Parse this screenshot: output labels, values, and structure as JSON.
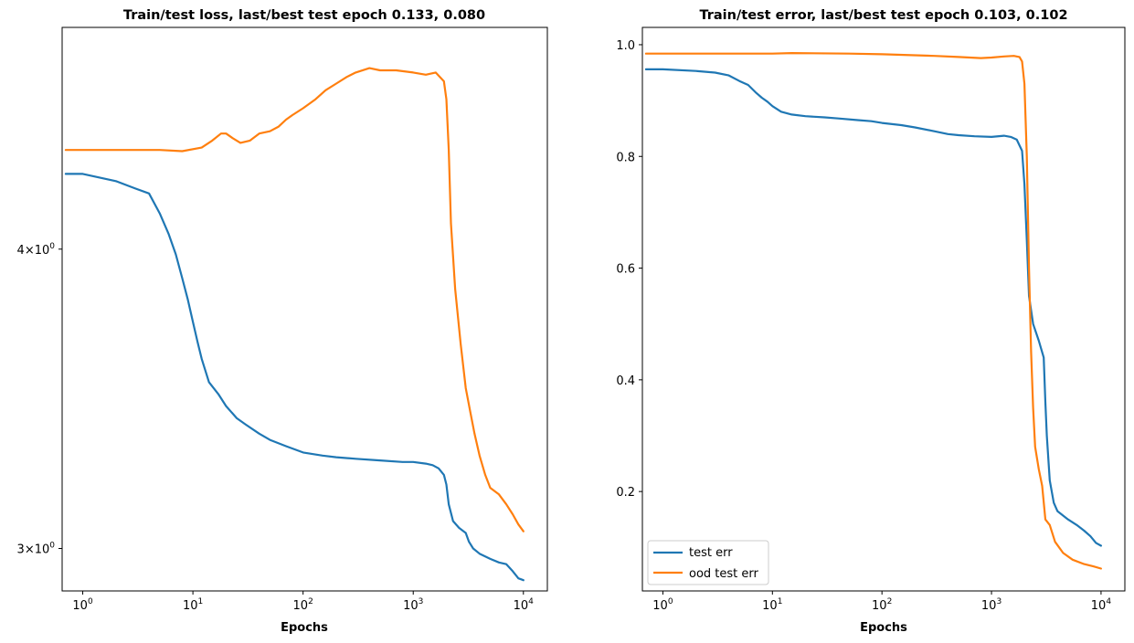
{
  "chart_data": [
    {
      "type": "line",
      "title": "Train/test loss, last/best test epoch 0.133, 0.080",
      "xlabel": "Epochs",
      "ylabel": "",
      "x_scale": "log",
      "y_scale": "log",
      "xlim": [
        0.65,
        16500
      ],
      "ylim": [
        2.88,
        4.95
      ],
      "x_ticks": [
        {
          "value": 1,
          "label": "10",
          "exp": "0"
        },
        {
          "value": 10,
          "label": "10",
          "exp": "1"
        },
        {
          "value": 100,
          "label": "10",
          "exp": "2"
        },
        {
          "value": 1000,
          "label": "10",
          "exp": "3"
        },
        {
          "value": 10000,
          "label": "10",
          "exp": "4"
        }
      ],
      "y_ticks": [
        {
          "value": 3,
          "label": "3×10",
          "exp": "0"
        },
        {
          "value": 4,
          "label": "4×10",
          "exp": "0"
        }
      ],
      "grid": false,
      "series": [
        {
          "color": "#1f77b4",
          "points": [
            [
              0.7,
              4.3
            ],
            [
              1,
              4.3
            ],
            [
              2,
              4.27
            ],
            [
              3,
              4.24
            ],
            [
              4,
              4.22
            ],
            [
              5,
              4.14
            ],
            [
              6,
              4.06
            ],
            [
              7,
              3.98
            ],
            [
              8,
              3.89
            ],
            [
              9,
              3.81
            ],
            [
              10,
              3.73
            ],
            [
              11,
              3.66
            ],
            [
              12,
              3.6
            ],
            [
              14,
              3.52
            ],
            [
              17,
              3.48
            ],
            [
              20,
              3.44
            ],
            [
              25,
              3.4
            ],
            [
              30,
              3.38
            ],
            [
              40,
              3.35
            ],
            [
              50,
              3.33
            ],
            [
              70,
              3.31
            ],
            [
              100,
              3.29
            ],
            [
              150,
              3.28
            ],
            [
              200,
              3.275
            ],
            [
              300,
              3.27
            ],
            [
              500,
              3.265
            ],
            [
              800,
              3.26
            ],
            [
              1000,
              3.26
            ],
            [
              1300,
              3.255
            ],
            [
              1500,
              3.25
            ],
            [
              1700,
              3.24
            ],
            [
              1900,
              3.22
            ],
            [
              2000,
              3.19
            ],
            [
              2100,
              3.13
            ],
            [
              2300,
              3.08
            ],
            [
              2600,
              3.06
            ],
            [
              3000,
              3.045
            ],
            [
              3200,
              3.02
            ],
            [
              3500,
              3.0
            ],
            [
              4000,
              2.985
            ],
            [
              5000,
              2.97
            ],
            [
              6000,
              2.96
            ],
            [
              7000,
              2.955
            ],
            [
              8000,
              2.935
            ],
            [
              9000,
              2.915
            ],
            [
              10000,
              2.91
            ]
          ]
        },
        {
          "color": "#ff7f0e",
          "points": [
            [
              0.7,
              4.4
            ],
            [
              1,
              4.4
            ],
            [
              2,
              4.4
            ],
            [
              5,
              4.4
            ],
            [
              8,
              4.395
            ],
            [
              12,
              4.41
            ],
            [
              15,
              4.44
            ],
            [
              18,
              4.47
            ],
            [
              20,
              4.47
            ],
            [
              23,
              4.45
            ],
            [
              27,
              4.43
            ],
            [
              33,
              4.44
            ],
            [
              40,
              4.47
            ],
            [
              50,
              4.48
            ],
            [
              60,
              4.5
            ],
            [
              70,
              4.53
            ],
            [
              80,
              4.55
            ],
            [
              100,
              4.58
            ],
            [
              130,
              4.62
            ],
            [
              160,
              4.66
            ],
            [
              200,
              4.69
            ],
            [
              250,
              4.72
            ],
            [
              300,
              4.74
            ],
            [
              400,
              4.76
            ],
            [
              500,
              4.75
            ],
            [
              700,
              4.75
            ],
            [
              1000,
              4.74
            ],
            [
              1300,
              4.73
            ],
            [
              1600,
              4.74
            ],
            [
              1900,
              4.7
            ],
            [
              2000,
              4.62
            ],
            [
              2100,
              4.4
            ],
            [
              2200,
              4.1
            ],
            [
              2400,
              3.85
            ],
            [
              2700,
              3.65
            ],
            [
              3000,
              3.5
            ],
            [
              3300,
              3.42
            ],
            [
              3600,
              3.35
            ],
            [
              4000,
              3.28
            ],
            [
              4500,
              3.22
            ],
            [
              5000,
              3.18
            ],
            [
              6000,
              3.16
            ],
            [
              7000,
              3.13
            ],
            [
              8000,
              3.1
            ],
            [
              9000,
              3.07
            ],
            [
              10000,
              3.05
            ]
          ]
        }
      ]
    },
    {
      "type": "line",
      "title": "Train/test error, last/best test epoch 0.103, 0.102",
      "xlabel": "Epochs",
      "ylabel": "",
      "x_scale": "log",
      "y_scale": "linear",
      "xlim": [
        0.65,
        16500
      ],
      "ylim": [
        0.022,
        1.031
      ],
      "x_ticks": [
        {
          "value": 1,
          "label": "10",
          "exp": "0"
        },
        {
          "value": 10,
          "label": "10",
          "exp": "1"
        },
        {
          "value": 100,
          "label": "10",
          "exp": "2"
        },
        {
          "value": 1000,
          "label": "10",
          "exp": "3"
        },
        {
          "value": 10000,
          "label": "10",
          "exp": "4"
        }
      ],
      "y_ticks": [
        {
          "value": 0.2,
          "label": "0.2"
        },
        {
          "value": 0.4,
          "label": "0.4"
        },
        {
          "value": 0.6,
          "label": "0.6"
        },
        {
          "value": 0.8,
          "label": "0.8"
        },
        {
          "value": 1.0,
          "label": "1.0"
        }
      ],
      "grid": false,
      "legend": {
        "location": "lower-left",
        "entries": [
          {
            "label": "test err",
            "color": "#1f77b4"
          },
          {
            "label": "ood test err",
            "color": "#ff7f0e"
          }
        ]
      },
      "series": [
        {
          "name": "test err",
          "color": "#1f77b4",
          "points": [
            [
              0.7,
              0.956
            ],
            [
              1,
              0.956
            ],
            [
              2,
              0.953
            ],
            [
              3,
              0.95
            ],
            [
              4,
              0.945
            ],
            [
              5,
              0.935
            ],
            [
              6,
              0.928
            ],
            [
              7,
              0.915
            ],
            [
              8,
              0.905
            ],
            [
              9,
              0.898
            ],
            [
              10,
              0.89
            ],
            [
              12,
              0.88
            ],
            [
              15,
              0.875
            ],
            [
              20,
              0.872
            ],
            [
              30,
              0.87
            ],
            [
              40,
              0.868
            ],
            [
              60,
              0.865
            ],
            [
              80,
              0.863
            ],
            [
              100,
              0.86
            ],
            [
              150,
              0.856
            ],
            [
              200,
              0.852
            ],
            [
              300,
              0.845
            ],
            [
              400,
              0.84
            ],
            [
              500,
              0.838
            ],
            [
              700,
              0.836
            ],
            [
              1000,
              0.835
            ],
            [
              1300,
              0.837
            ],
            [
              1500,
              0.835
            ],
            [
              1700,
              0.83
            ],
            [
              1900,
              0.81
            ],
            [
              2000,
              0.75
            ],
            [
              2100,
              0.65
            ],
            [
              2200,
              0.55
            ],
            [
              2400,
              0.5
            ],
            [
              2700,
              0.47
            ],
            [
              3000,
              0.44
            ],
            [
              3100,
              0.36
            ],
            [
              3200,
              0.3
            ],
            [
              3400,
              0.22
            ],
            [
              3700,
              0.18
            ],
            [
              4000,
              0.165
            ],
            [
              5000,
              0.15
            ],
            [
              6000,
              0.14
            ],
            [
              7000,
              0.13
            ],
            [
              8000,
              0.12
            ],
            [
              9000,
              0.108
            ],
            [
              10000,
              0.103
            ]
          ]
        },
        {
          "name": "ood test err",
          "color": "#ff7f0e",
          "points": [
            [
              0.7,
              0.984
            ],
            [
              1,
              0.984
            ],
            [
              10,
              0.984
            ],
            [
              15,
              0.985
            ],
            [
              50,
              0.984
            ],
            [
              100,
              0.983
            ],
            [
              300,
              0.98
            ],
            [
              500,
              0.978
            ],
            [
              800,
              0.976
            ],
            [
              1000,
              0.977
            ],
            [
              1300,
              0.979
            ],
            [
              1600,
              0.98
            ],
            [
              1800,
              0.978
            ],
            [
              1900,
              0.97
            ],
            [
              2000,
              0.93
            ],
            [
              2100,
              0.8
            ],
            [
              2200,
              0.6
            ],
            [
              2300,
              0.45
            ],
            [
              2400,
              0.35
            ],
            [
              2500,
              0.28
            ],
            [
              2700,
              0.24
            ],
            [
              2900,
              0.21
            ],
            [
              3100,
              0.15
            ],
            [
              3400,
              0.14
            ],
            [
              3800,
              0.11
            ],
            [
              4500,
              0.09
            ],
            [
              5500,
              0.078
            ],
            [
              7000,
              0.07
            ],
            [
              8500,
              0.066
            ],
            [
              10000,
              0.062
            ]
          ]
        }
      ]
    }
  ]
}
